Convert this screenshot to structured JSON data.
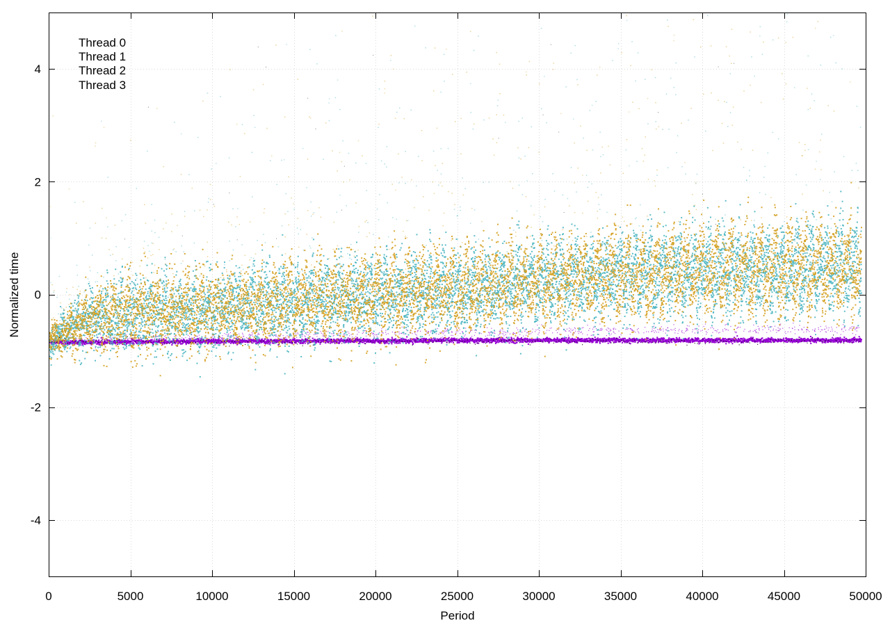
{
  "chart_data": {
    "type": "scatter",
    "title": "",
    "xlabel": "Period",
    "ylabel": "Normalized time",
    "xlim": [
      0,
      50000
    ],
    "ylim": [
      -5,
      5
    ],
    "xticks": [
      0,
      5000,
      10000,
      15000,
      20000,
      25000,
      30000,
      35000,
      40000,
      45000,
      50000
    ],
    "yticks": [
      -4,
      -2,
      0,
      2,
      4
    ],
    "grid": true,
    "legend_position": "top-left",
    "x_end": 49700,
    "series": [
      {
        "name": "Thread 0",
        "color": "#000000",
        "baseline": [
          [
            0,
            -0.85
          ],
          [
            1000,
            -0.83
          ],
          [
            50000,
            -0.82
          ]
        ],
        "spread": 0.1
      },
      {
        "name": "Thread 1",
        "color": "#4bb5c1",
        "baseline": [
          [
            0,
            -0.85
          ],
          [
            2000,
            -0.55
          ],
          [
            5000,
            -0.45
          ],
          [
            10000,
            -0.35
          ],
          [
            15000,
            -0.25
          ],
          [
            20000,
            -0.15
          ],
          [
            25000,
            -0.05
          ],
          [
            30000,
            0.1
          ],
          [
            35000,
            0.2
          ],
          [
            40000,
            0.25
          ],
          [
            45000,
            0.3
          ],
          [
            50000,
            0.35
          ]
        ],
        "spread": 0.3,
        "sawtooth_period": 900,
        "sawtooth_amplitude": 0.6
      },
      {
        "name": "Thread 2",
        "color": "#d4a020",
        "baseline": [
          [
            0,
            -0.85
          ],
          [
            2000,
            -0.55
          ],
          [
            5000,
            -0.45
          ],
          [
            10000,
            -0.35
          ],
          [
            15000,
            -0.25
          ],
          [
            20000,
            -0.15
          ],
          [
            25000,
            -0.05
          ],
          [
            30000,
            0.1
          ],
          [
            35000,
            0.2
          ],
          [
            40000,
            0.25
          ],
          [
            45000,
            0.3
          ],
          [
            50000,
            0.35
          ]
        ],
        "spread": 0.3,
        "sawtooth_period": 900,
        "sawtooth_amplitude": 0.65
      },
      {
        "name": "Thread 3",
        "color": "#9400d3",
        "baseline": [
          [
            0,
            -0.84
          ],
          [
            10000,
            -0.82
          ],
          [
            30000,
            -0.8
          ],
          [
            50000,
            -0.8
          ]
        ],
        "spread": 0.04,
        "upper_band": [
          [
            0,
            -0.82
          ],
          [
            10000,
            -0.75
          ],
          [
            20000,
            -0.68
          ],
          [
            30000,
            -0.64
          ],
          [
            40000,
            -0.62
          ],
          [
            50000,
            -0.6
          ]
        ]
      }
    ]
  }
}
